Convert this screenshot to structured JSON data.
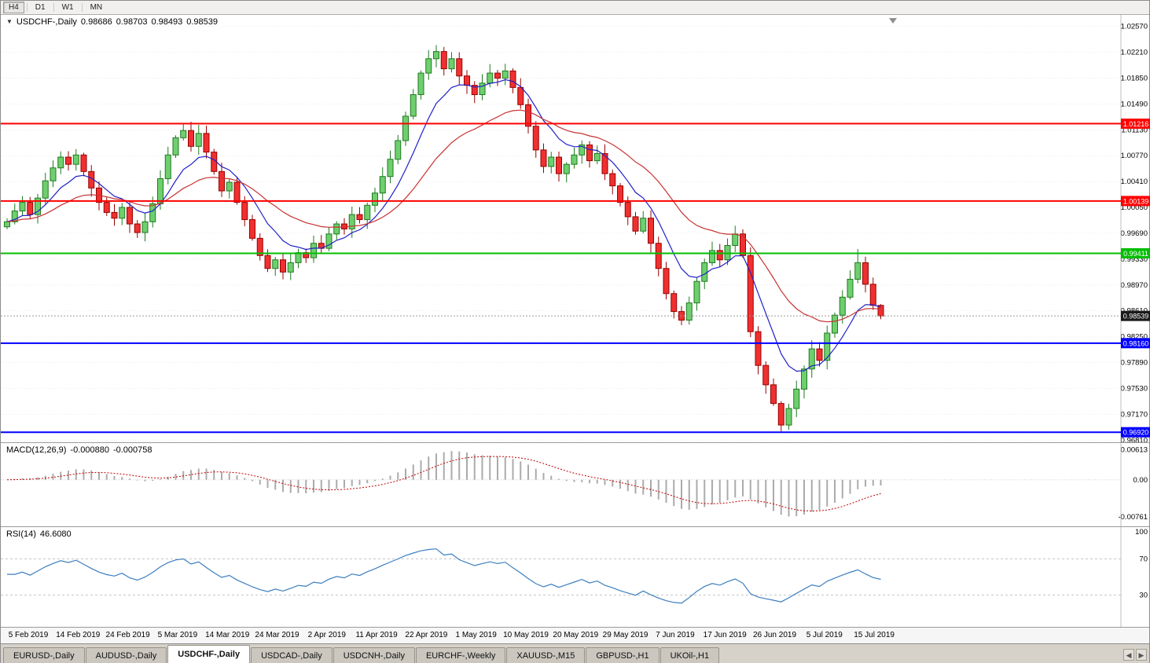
{
  "toolbar": {
    "timeframes": [
      "H4",
      "D1",
      "W1",
      "MN"
    ],
    "active_index": 0
  },
  "chart": {
    "title": "USDCHF-,Daily",
    "ohlc": {
      "open": "0.98686",
      "high": "0.98703",
      "low": "0.98493",
      "close": "0.98539"
    }
  },
  "chart_data": {
    "type": "candlestick",
    "symbol": "USDCHF",
    "timeframe": "Daily",
    "title": "USDCHF-,Daily 0.98686 0.98703 0.98493 0.98539",
    "x_labels": [
      "5 Feb 2019",
      "14 Feb 2019",
      "24 Feb 2019",
      "5 Mar 2019",
      "14 Mar 2019",
      "24 Mar 2019",
      "2 Apr 2019",
      "11 Apr 2019",
      "22 Apr 2019",
      "1 May 2019",
      "10 May 2019",
      "20 May 2019",
      "29 May 2019",
      "7 Jun 2019",
      "17 Jun 2019",
      "26 Jun 2019",
      "5 Jul 2019",
      "15 Jul 2019"
    ],
    "y_axis_ticks": [
      "1.02570",
      "1.02210",
      "1.01850",
      "1.01490",
      "1.01130",
      "1.00770",
      "1.00410",
      "1.00050",
      "0.99690",
      "0.99330",
      "0.98970",
      "0.98610",
      "0.98250",
      "0.97890",
      "0.97530",
      "0.97170",
      "0.96810"
    ],
    "price_range": {
      "top": 1.0273,
      "bottom": 0.9678
    },
    "first_open": 0.9978,
    "closes": [
      0.9985,
      1.0,
      1.0012,
      0.9995,
      1.0018,
      1.0042,
      1.006,
      1.0075,
      1.0065,
      1.0078,
      1.0055,
      1.0032,
      1.0012,
      0.9998,
      0.999,
      1.0005,
      0.9982,
      0.997,
      0.9985,
      1.001,
      1.0045,
      1.0078,
      1.0102,
      1.0112,
      1.009,
      1.0108,
      1.0082,
      1.0055,
      1.0028,
      1.004,
      1.0012,
      0.9988,
      0.9962,
      0.9938,
      0.992,
      0.9932,
      0.9915,
      0.9928,
      0.9942,
      0.9935,
      0.9955,
      0.9948,
      0.9968,
      0.9982,
      0.9975,
      0.9995,
      0.9988,
      1.0008,
      1.0025,
      1.0048,
      1.0072,
      1.0098,
      1.0132,
      1.0162,
      1.0192,
      1.0212,
      1.0222,
      1.0198,
      1.0212,
      1.0188,
      1.0175,
      1.0162,
      1.0178,
      1.0192,
      1.0185,
      1.0195,
      1.0172,
      1.0148,
      1.0118,
      1.0085,
      1.0062,
      1.0075,
      1.0052,
      1.0065,
      1.0078,
      1.0092,
      1.007,
      1.008,
      1.0052,
      1.0035,
      1.0012,
      0.9992,
      0.9972,
      0.999,
      0.9955,
      0.992,
      0.9885,
      0.986,
      0.9848,
      0.9872,
      0.9902,
      0.9928,
      0.9945,
      0.9932,
      0.9952,
      0.9968,
      0.9938,
      0.9832,
      0.9785,
      0.9758,
      0.9732,
      0.9702,
      0.9725,
      0.9752,
      0.978,
      0.9808,
      0.9792,
      0.983,
      0.9855,
      0.988,
      0.9905,
      0.9928,
      0.9898,
      0.98686,
      0.98539
    ],
    "wick_overrides": {
      "23": {
        "high": 1.0121
      },
      "25": {
        "high": 1.012
      },
      "56": {
        "high": 1.0231
      },
      "88": {
        "low": 0.9841
      },
      "101": {
        "low": 0.9693
      },
      "111": {
        "high": 0.9947
      },
      "114": {
        "high": 0.98703,
        "low": 0.98493
      }
    },
    "levels": [
      {
        "price": 1.01216,
        "label": "1.01216",
        "color": "#FF0000"
      },
      {
        "price": 1.00139,
        "label": "1.00139",
        "color": "#FF0000"
      },
      {
        "price": 0.99411,
        "label": "0.99411",
        "color": "#00BE00"
      },
      {
        "price": 0.9816,
        "label": "0.98160",
        "color": "#0000FF"
      },
      {
        "price": 0.9692,
        "label": "0.96920",
        "color": "#0000FF"
      }
    ],
    "current_price": {
      "value": 0.98539,
      "label": "0.98539"
    },
    "moving_averages": [
      {
        "period": 8,
        "color": "#2020C8"
      },
      {
        "period": 22,
        "color": "#C83232"
      }
    ]
  },
  "indicators": {
    "macd": {
      "label": "MACD(12,26,9)",
      "value_main": "-0.000880",
      "value_signal": "-0.000758",
      "axis": [
        "0.00613",
        "0.00",
        "-0.00761"
      ],
      "range": {
        "top": 0.0075,
        "bottom": -0.0095
      },
      "params": {
        "fast": 12,
        "slow": 26,
        "signal": 9
      }
    },
    "rsi": {
      "label": "RSI(14)",
      "value": "46.6080",
      "axis": [
        "100",
        "70",
        "30"
      ],
      "period": 14,
      "levels": [
        70,
        30
      ]
    }
  },
  "tabs": {
    "items": [
      "EURUSD-,Daily",
      "AUDUSD-,Daily",
      "USDCHF-,Daily",
      "USDCAD-,Daily",
      "USDCNH-,Daily",
      "EURCHF-,Weekly",
      "XAUUSD-,M15",
      "GBPUSD-,H1",
      "UKOil-,H1"
    ],
    "active_index": 2
  },
  "colors": {
    "candle_up": "#6FCF6F",
    "candle_up_border": "#1F7A1F",
    "candle_down": "#F03030",
    "candle_down_border": "#990000",
    "macd_hist": "#ABABAB",
    "macd_signal": "#C00000",
    "rsi_line": "#3C7EBF",
    "grid": "#EDEDED",
    "current_price_bg": "#1A1A1A"
  }
}
